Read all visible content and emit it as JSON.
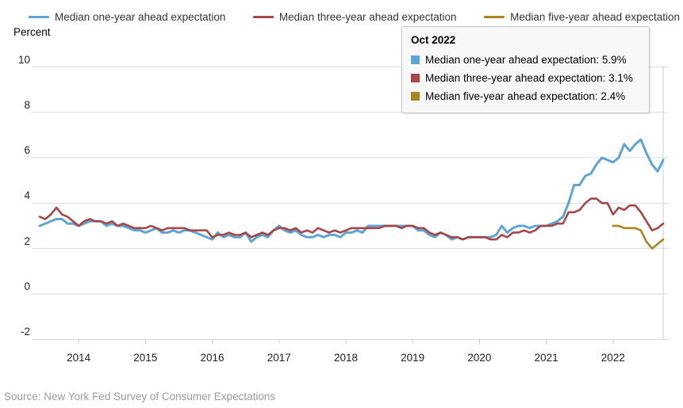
{
  "source": "Source: New York Fed Survey of Consumer Expectations",
  "tooltip": {
    "title": "Oct 2022",
    "rows": [
      {
        "label": "Median one-year ahead expectation",
        "value": "5.9%"
      },
      {
        "label": "Median three-year ahead expectation",
        "value": "3.1%"
      },
      {
        "label": "Median five-year ahead expectation",
        "value": "2.4%"
      }
    ]
  },
  "chart_data": {
    "type": "line",
    "title": "",
    "xlabel": "",
    "ylabel": "Percent",
    "ylim": [
      -2,
      10
    ],
    "grid": "horizontal",
    "legend_position": "top",
    "x_start_month": "2013-06",
    "x_end_month": "2022-10",
    "months_count": 113,
    "crosshair": {
      "index": 112,
      "label": "Oct 2022"
    },
    "y_ticks": [
      10,
      8,
      6,
      4,
      2,
      0,
      -2
    ],
    "x_ticks": [
      {
        "label": "2014",
        "month_index": 7
      },
      {
        "label": "2015",
        "month_index": 19
      },
      {
        "label": "2016",
        "month_index": 31
      },
      {
        "label": "2017",
        "month_index": 43
      },
      {
        "label": "2018",
        "month_index": 55
      },
      {
        "label": "2019",
        "month_index": 67
      },
      {
        "label": "2020",
        "month_index": 79
      },
      {
        "label": "2021",
        "month_index": 91
      },
      {
        "label": "2022",
        "month_index": 103
      }
    ],
    "series": [
      {
        "id": "one-year",
        "name": "Median one-year ahead expectation",
        "color": "#5ea4d5",
        "start_index": 0,
        "values": [
          3.0,
          3.1,
          3.2,
          3.3,
          3.3,
          3.1,
          3.1,
          3.0,
          3.1,
          3.2,
          3.2,
          3.2,
          3.0,
          3.1,
          3.0,
          3.0,
          2.9,
          2.8,
          2.8,
          2.7,
          2.8,
          2.9,
          2.7,
          2.7,
          2.8,
          2.7,
          2.8,
          2.8,
          2.7,
          2.6,
          2.5,
          2.4,
          2.7,
          2.5,
          2.6,
          2.5,
          2.5,
          2.7,
          2.3,
          2.5,
          2.6,
          2.5,
          2.8,
          3.0,
          2.8,
          2.7,
          2.8,
          2.6,
          2.5,
          2.5,
          2.6,
          2.5,
          2.6,
          2.6,
          2.5,
          2.7,
          2.7,
          2.8,
          2.7,
          3.0,
          3.0,
          3.0,
          3.0,
          3.0,
          3.0,
          3.0,
          3.0,
          3.0,
          2.8,
          2.8,
          2.6,
          2.5,
          2.7,
          2.6,
          2.4,
          2.5,
          2.4,
          2.5,
          2.5,
          2.5,
          2.5,
          2.5,
          2.6,
          3.0,
          2.7,
          2.9,
          3.0,
          3.0,
          2.9,
          3.0,
          3.0,
          3.0,
          3.1,
          3.2,
          3.4,
          4.0,
          4.8,
          4.8,
          5.2,
          5.3,
          5.7,
          6.0,
          5.9,
          5.8,
          6.0,
          6.6,
          6.3,
          6.6,
          6.8,
          6.2,
          5.7,
          5.4,
          5.9
        ]
      },
      {
        "id": "three-year",
        "name": "Median three-year ahead expectation",
        "color": "#a74645",
        "start_index": 0,
        "values": [
          3.4,
          3.3,
          3.5,
          3.8,
          3.5,
          3.4,
          3.2,
          3.0,
          3.2,
          3.3,
          3.2,
          3.2,
          3.1,
          3.2,
          3.0,
          3.1,
          3.0,
          2.9,
          2.9,
          2.9,
          3.0,
          2.9,
          2.8,
          2.9,
          2.9,
          2.9,
          2.9,
          2.8,
          2.8,
          2.8,
          2.8,
          2.5,
          2.6,
          2.6,
          2.7,
          2.6,
          2.6,
          2.7,
          2.5,
          2.6,
          2.7,
          2.6,
          2.8,
          2.9,
          2.9,
          2.8,
          2.9,
          2.7,
          2.8,
          2.7,
          2.9,
          2.8,
          2.7,
          2.8,
          2.7,
          2.8,
          2.9,
          2.9,
          2.9,
          2.9,
          2.9,
          2.9,
          3.0,
          3.0,
          3.0,
          2.9,
          3.0,
          3.0,
          2.9,
          2.9,
          2.7,
          2.6,
          2.7,
          2.6,
          2.5,
          2.5,
          2.4,
          2.5,
          2.5,
          2.5,
          2.5,
          2.4,
          2.4,
          2.6,
          2.5,
          2.7,
          2.7,
          2.8,
          2.7,
          2.8,
          3.0,
          3.0,
          3.0,
          3.1,
          3.1,
          3.6,
          3.6,
          3.7,
          4.0,
          4.2,
          4.2,
          4.0,
          4.0,
          3.5,
          3.8,
          3.7,
          3.9,
          3.9,
          3.6,
          3.2,
          2.8,
          2.9,
          3.1
        ]
      },
      {
        "id": "five-year",
        "name": "Median five-year ahead expectation",
        "color": "#a8861d",
        "start_index": 103,
        "values": [
          3.0,
          3.0,
          2.9,
          2.9,
          2.9,
          2.8,
          2.3,
          2.0,
          2.2,
          2.4
        ]
      }
    ]
  }
}
